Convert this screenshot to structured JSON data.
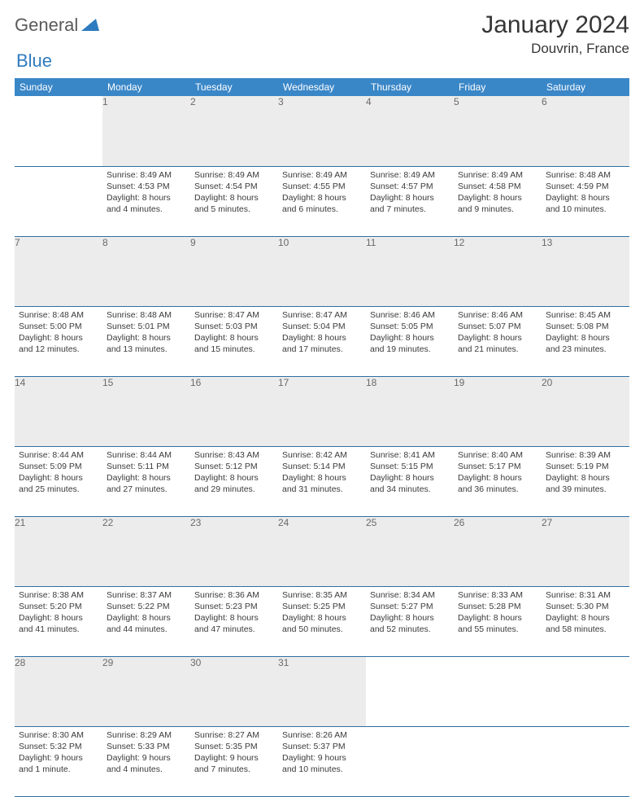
{
  "colors": {
    "header_bg": "#3a87c8",
    "header_text": "#ffffff",
    "daynum_bg": "#ececec",
    "daynum_text": "#6a6a6a",
    "rule": "#2f6fa3",
    "body_text": "#3b3b3b",
    "logo_gray": "#5a5a5a",
    "logo_blue": "#2f7bbf"
  },
  "logo": {
    "part1": "General",
    "part2": "Blue"
  },
  "title": "January 2024",
  "location": "Douvrin, France",
  "weekdays": [
    "Sunday",
    "Monday",
    "Tuesday",
    "Wednesday",
    "Thursday",
    "Friday",
    "Saturday"
  ],
  "weeks": [
    {
      "nums": [
        "",
        "1",
        "2",
        "3",
        "4",
        "5",
        "6"
      ],
      "cells": [
        null,
        {
          "sunrise": "8:49 AM",
          "sunset": "4:53 PM",
          "daylight": "8 hours and 4 minutes."
        },
        {
          "sunrise": "8:49 AM",
          "sunset": "4:54 PM",
          "daylight": "8 hours and 5 minutes."
        },
        {
          "sunrise": "8:49 AM",
          "sunset": "4:55 PM",
          "daylight": "8 hours and 6 minutes."
        },
        {
          "sunrise": "8:49 AM",
          "sunset": "4:57 PM",
          "daylight": "8 hours and 7 minutes."
        },
        {
          "sunrise": "8:49 AM",
          "sunset": "4:58 PM",
          "daylight": "8 hours and 9 minutes."
        },
        {
          "sunrise": "8:48 AM",
          "sunset": "4:59 PM",
          "daylight": "8 hours and 10 minutes."
        }
      ]
    },
    {
      "nums": [
        "7",
        "8",
        "9",
        "10",
        "11",
        "12",
        "13"
      ],
      "cells": [
        {
          "sunrise": "8:48 AM",
          "sunset": "5:00 PM",
          "daylight": "8 hours and 12 minutes."
        },
        {
          "sunrise": "8:48 AM",
          "sunset": "5:01 PM",
          "daylight": "8 hours and 13 minutes."
        },
        {
          "sunrise": "8:47 AM",
          "sunset": "5:03 PM",
          "daylight": "8 hours and 15 minutes."
        },
        {
          "sunrise": "8:47 AM",
          "sunset": "5:04 PM",
          "daylight": "8 hours and 17 minutes."
        },
        {
          "sunrise": "8:46 AM",
          "sunset": "5:05 PM",
          "daylight": "8 hours and 19 minutes."
        },
        {
          "sunrise": "8:46 AM",
          "sunset": "5:07 PM",
          "daylight": "8 hours and 21 minutes."
        },
        {
          "sunrise": "8:45 AM",
          "sunset": "5:08 PM",
          "daylight": "8 hours and 23 minutes."
        }
      ]
    },
    {
      "nums": [
        "14",
        "15",
        "16",
        "17",
        "18",
        "19",
        "20"
      ],
      "cells": [
        {
          "sunrise": "8:44 AM",
          "sunset": "5:09 PM",
          "daylight": "8 hours and 25 minutes."
        },
        {
          "sunrise": "8:44 AM",
          "sunset": "5:11 PM",
          "daylight": "8 hours and 27 minutes."
        },
        {
          "sunrise": "8:43 AM",
          "sunset": "5:12 PM",
          "daylight": "8 hours and 29 minutes."
        },
        {
          "sunrise": "8:42 AM",
          "sunset": "5:14 PM",
          "daylight": "8 hours and 31 minutes."
        },
        {
          "sunrise": "8:41 AM",
          "sunset": "5:15 PM",
          "daylight": "8 hours and 34 minutes."
        },
        {
          "sunrise": "8:40 AM",
          "sunset": "5:17 PM",
          "daylight": "8 hours and 36 minutes."
        },
        {
          "sunrise": "8:39 AM",
          "sunset": "5:19 PM",
          "daylight": "8 hours and 39 minutes."
        }
      ]
    },
    {
      "nums": [
        "21",
        "22",
        "23",
        "24",
        "25",
        "26",
        "27"
      ],
      "cells": [
        {
          "sunrise": "8:38 AM",
          "sunset": "5:20 PM",
          "daylight": "8 hours and 41 minutes."
        },
        {
          "sunrise": "8:37 AM",
          "sunset": "5:22 PM",
          "daylight": "8 hours and 44 minutes."
        },
        {
          "sunrise": "8:36 AM",
          "sunset": "5:23 PM",
          "daylight": "8 hours and 47 minutes."
        },
        {
          "sunrise": "8:35 AM",
          "sunset": "5:25 PM",
          "daylight": "8 hours and 50 minutes."
        },
        {
          "sunrise": "8:34 AM",
          "sunset": "5:27 PM",
          "daylight": "8 hours and 52 minutes."
        },
        {
          "sunrise": "8:33 AM",
          "sunset": "5:28 PM",
          "daylight": "8 hours and 55 minutes."
        },
        {
          "sunrise": "8:31 AM",
          "sunset": "5:30 PM",
          "daylight": "8 hours and 58 minutes."
        }
      ]
    },
    {
      "nums": [
        "28",
        "29",
        "30",
        "31",
        "",
        "",
        ""
      ],
      "cells": [
        {
          "sunrise": "8:30 AM",
          "sunset": "5:32 PM",
          "daylight": "9 hours and 1 minute."
        },
        {
          "sunrise": "8:29 AM",
          "sunset": "5:33 PM",
          "daylight": "9 hours and 4 minutes."
        },
        {
          "sunrise": "8:27 AM",
          "sunset": "5:35 PM",
          "daylight": "9 hours and 7 minutes."
        },
        {
          "sunrise": "8:26 AM",
          "sunset": "5:37 PM",
          "daylight": "9 hours and 10 minutes."
        },
        null,
        null,
        null
      ]
    }
  ],
  "labels": {
    "sunrise": "Sunrise:",
    "sunset": "Sunset:",
    "daylight": "Daylight:"
  }
}
